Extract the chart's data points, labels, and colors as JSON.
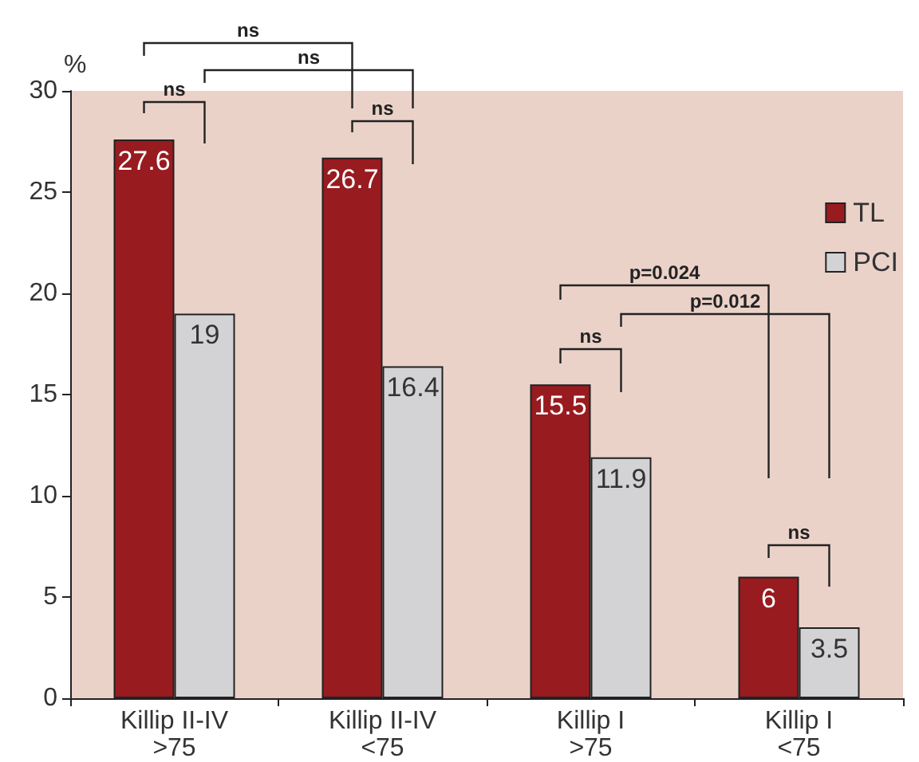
{
  "chart_data": {
    "type": "bar",
    "ylabel": "%",
    "categories": [
      "Killip II-IV\n>75",
      "Killip II-IV\n<75",
      "Killip I\n>75",
      "Killip I\n<75"
    ],
    "series": [
      {
        "name": "TL",
        "color": "#981b20",
        "values": [
          27.6,
          26.7,
          15.5,
          6
        ]
      },
      {
        "name": "PCI",
        "color": "#d3d3d5",
        "values": [
          19,
          16.4,
          11.9,
          3.5
        ]
      }
    ],
    "ylim": [
      0,
      30
    ],
    "yticks": [
      0,
      5,
      10,
      15,
      20,
      25,
      30
    ],
    "data_labels": true,
    "grid": false,
    "legend": "right",
    "annotations": [
      "ns",
      "ns",
      "ns",
      "ns",
      "p=0.024",
      "p=0.012",
      "ns",
      "ns"
    ]
  }
}
